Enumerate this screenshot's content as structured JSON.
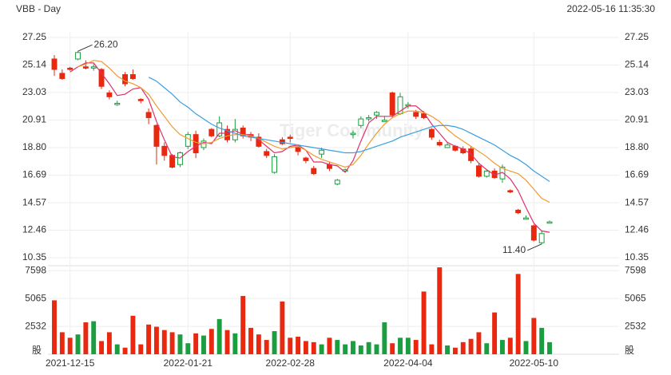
{
  "chart_data": {
    "type": "candlestick",
    "title": "VBB - Day",
    "timestamp": "2022-05-16 11:35:30",
    "watermark": "Tiger Community",
    "volume_unit": "股",
    "categories": [
      null,
      null,
      "2021-12-15",
      null,
      null,
      null,
      null,
      null,
      null,
      null,
      null,
      null,
      null,
      null,
      null,
      null,
      null,
      "2022-01-21",
      null,
      null,
      null,
      null,
      null,
      null,
      null,
      null,
      null,
      null,
      null,
      null,
      "2022-02-28",
      null,
      null,
      null,
      null,
      null,
      null,
      null,
      null,
      null,
      null,
      null,
      null,
      null,
      null,
      "2022-04-04",
      null,
      null,
      null,
      null,
      null,
      null,
      null,
      null,
      null,
      null,
      null,
      null,
      null,
      null,
      null,
      "2022-05-10",
      null,
      null
    ],
    "open": [
      25.6,
      24.5,
      24.9,
      25.6,
      25.0,
      24.9,
      24.8,
      23.0,
      22.1,
      24.4,
      24.4,
      22.5,
      21.5,
      20.5,
      18.9,
      18.2,
      17.5,
      18.9,
      19.8,
      18.8,
      20.2,
      19.7,
      20.2,
      19.4,
      20.3,
      19.8,
      19.6,
      18.5,
      16.9,
      19.4,
      19.6,
      18.8,
      18.0,
      17.2,
      18.3,
      17.5,
      16.0,
      17.0,
      19.8,
      20.5,
      21.0,
      21.3,
      20.8,
      23.0,
      21.4,
      22.0,
      21.5,
      21.4,
      20.2,
      19.2,
      18.8,
      18.9,
      18.7,
      18.7,
      17.4,
      16.6,
      17.0,
      16.4,
      15.5,
      14.0,
      13.3,
      12.8,
      11.5,
      13.0
    ],
    "high": [
      25.9,
      24.8,
      25.0,
      26.2,
      25.5,
      25.2,
      24.9,
      23.2,
      22.4,
      24.6,
      24.8,
      22.6,
      21.8,
      20.6,
      19.2,
      18.3,
      18.5,
      20.0,
      20.1,
      19.5,
      20.3,
      21.2,
      20.5,
      21.0,
      20.5,
      20.0,
      19.9,
      18.7,
      18.3,
      19.6,
      19.8,
      19.0,
      18.1,
      17.4,
      18.8,
      17.7,
      16.4,
      17.2,
      20.1,
      21.2,
      21.3,
      21.6,
      21.2,
      23.1,
      23.0,
      22.3,
      21.7,
      21.6,
      20.3,
      19.4,
      19.2,
      19.0,
      18.9,
      18.9,
      17.6,
      17.1,
      17.2,
      17.5,
      15.6,
      14.1,
      13.6,
      12.9,
      12.4,
      13.2
    ],
    "low": [
      24.3,
      24.0,
      24.7,
      25.5,
      24.8,
      24.7,
      23.3,
      22.5,
      22.0,
      23.5,
      24.0,
      22.2,
      20.6,
      17.5,
      17.8,
      17.2,
      17.3,
      18.7,
      18.0,
      18.6,
      19.6,
      19.6,
      19.2,
      19.2,
      19.5,
      19.3,
      18.8,
      18.0,
      16.8,
      19.0,
      19.2,
      18.2,
      17.6,
      16.7,
      18.0,
      17.0,
      15.9,
      16.9,
      19.5,
      20.3,
      20.8,
      21.0,
      20.8,
      21.1,
      21.3,
      21.8,
      21.0,
      21.0,
      19.4,
      18.9,
      18.8,
      18.5,
      18.3,
      17.6,
      16.5,
      16.5,
      16.4,
      16.1,
      15.3,
      13.7,
      13.3,
      11.6,
      11.4,
      13.0
    ],
    "close": [
      24.8,
      24.1,
      24.8,
      26.1,
      24.9,
      25.0,
      23.5,
      22.7,
      22.2,
      23.7,
      24.1,
      22.4,
      21.1,
      18.9,
      18.2,
      17.3,
      18.4,
      19.8,
      18.4,
      19.3,
      19.7,
      20.7,
      19.4,
      20.2,
      19.7,
      19.6,
      18.9,
      18.2,
      18.1,
      19.1,
      19.5,
      18.5,
      17.8,
      16.8,
      18.6,
      17.2,
      16.3,
      17.1,
      19.9,
      21.0,
      21.1,
      21.5,
      20.9,
      21.3,
      22.7,
      22.1,
      21.2,
      21.1,
      19.6,
      19.0,
      19.0,
      18.6,
      18.4,
      17.8,
      16.6,
      17.0,
      16.5,
      17.3,
      15.4,
      13.8,
      13.4,
      11.7,
      12.2,
      13.1
    ],
    "volume": [
      4900,
      2000,
      1500,
      1800,
      2900,
      3000,
      1200,
      2000,
      900,
      600,
      3500,
      900,
      2700,
      2500,
      2200,
      2000,
      1800,
      1000,
      1900,
      1700,
      2300,
      3200,
      2200,
      1900,
      5300,
      2400,
      1800,
      1300,
      2100,
      4800,
      1500,
      1600,
      1200,
      1100,
      900,
      1500,
      1300,
      900,
      1200,
      800,
      1100,
      900,
      2900,
      1000,
      1500,
      1500,
      1300,
      5700,
      900,
      7900,
      800,
      600,
      1100,
      1400,
      2000,
      1000,
      3800,
      1300,
      1500,
      7300,
      1200,
      3300,
      2400,
      1100
    ],
    "up_color": "#1a9e3f",
    "down_color": "#e8280f",
    "series": [
      {
        "color": "#e0306a",
        "values": [
          null,
          null,
          24.6,
          25.0,
          25.3,
          25.3,
          24.5,
          23.7,
          22.8,
          22.9,
          23.3,
          23.4,
          22.5,
          20.8,
          19.4,
          18.1,
          18.0,
          18.5,
          18.9,
          19.2,
          19.1,
          19.9,
          19.9,
          20.1,
          19.8,
          19.8,
          19.4,
          18.9,
          18.4,
          18.5,
          18.9,
          19.0,
          18.6,
          17.7,
          17.7,
          17.5,
          17.4,
          16.9,
          17.8,
          19.3,
          20.7,
          21.2,
          21.2,
          21.2,
          21.6,
          22.0,
          22.0,
          21.5,
          20.6,
          19.9,
          19.2,
          18.9,
          18.7,
          18.3,
          17.6,
          17.1,
          16.7,
          16.9,
          16.4,
          15.5,
          14.2,
          13.0,
          12.4,
          12.3
        ]
      },
      {
        "color": "#f09a30",
        "values": [
          null,
          null,
          null,
          25.0,
          25.2,
          25.5,
          25.4,
          24.9,
          24.3,
          23.9,
          23.7,
          23.4,
          22.9,
          22.0,
          21.2,
          20.4,
          19.8,
          19.5,
          19.2,
          19.1,
          19.2,
          19.5,
          19.7,
          19.8,
          19.8,
          19.7,
          19.5,
          19.2,
          18.9,
          18.7,
          18.8,
          18.9,
          18.6,
          18.2,
          17.9,
          17.7,
          17.5,
          17.3,
          17.5,
          18.2,
          19.1,
          19.9,
          20.6,
          21.1,
          21.4,
          21.6,
          21.6,
          21.5,
          21.2,
          20.8,
          20.2,
          19.7,
          19.3,
          18.9,
          18.5,
          18.1,
          17.6,
          17.2,
          17.0,
          16.8,
          16.3,
          15.6,
          14.9,
          14.6
        ]
      },
      {
        "color": "#3a9ee0",
        "values": [
          null,
          null,
          null,
          null,
          null,
          null,
          null,
          null,
          null,
          null,
          null,
          null,
          24.2,
          23.9,
          23.4,
          22.9,
          22.3,
          21.9,
          21.4,
          21.0,
          20.6,
          20.3,
          20.1,
          19.9,
          19.7,
          19.6,
          19.5,
          19.4,
          19.3,
          19.2,
          19.1,
          19.0,
          18.9,
          18.8,
          18.7,
          18.6,
          18.5,
          18.4,
          18.4,
          18.5,
          18.7,
          18.9,
          19.1,
          19.3,
          19.6,
          19.8,
          20.0,
          20.2,
          20.4,
          20.5,
          20.5,
          20.4,
          20.2,
          19.9,
          19.6,
          19.3,
          19.0,
          18.6,
          18.2,
          17.9,
          17.5,
          17.0,
          16.6,
          16.2
        ]
      }
    ],
    "ylim": [
      10.35,
      27.25
    ],
    "yticks": [
      27.25,
      25.14,
      23.03,
      20.91,
      {
        "value": 18.8,
        "label": "18.80"
      },
      16.69,
      14.57,
      12.46,
      10.35
    ],
    "volume_lim": [
      0,
      8050
    ],
    "volume_ticks": [
      7598,
      5065,
      2532
    ],
    "annotations": [
      {
        "text": "26.20",
        "index": 3,
        "value": 26.2
      },
      {
        "text": "11.40",
        "index": 62,
        "value": 11.4
      }
    ],
    "grid": true
  }
}
